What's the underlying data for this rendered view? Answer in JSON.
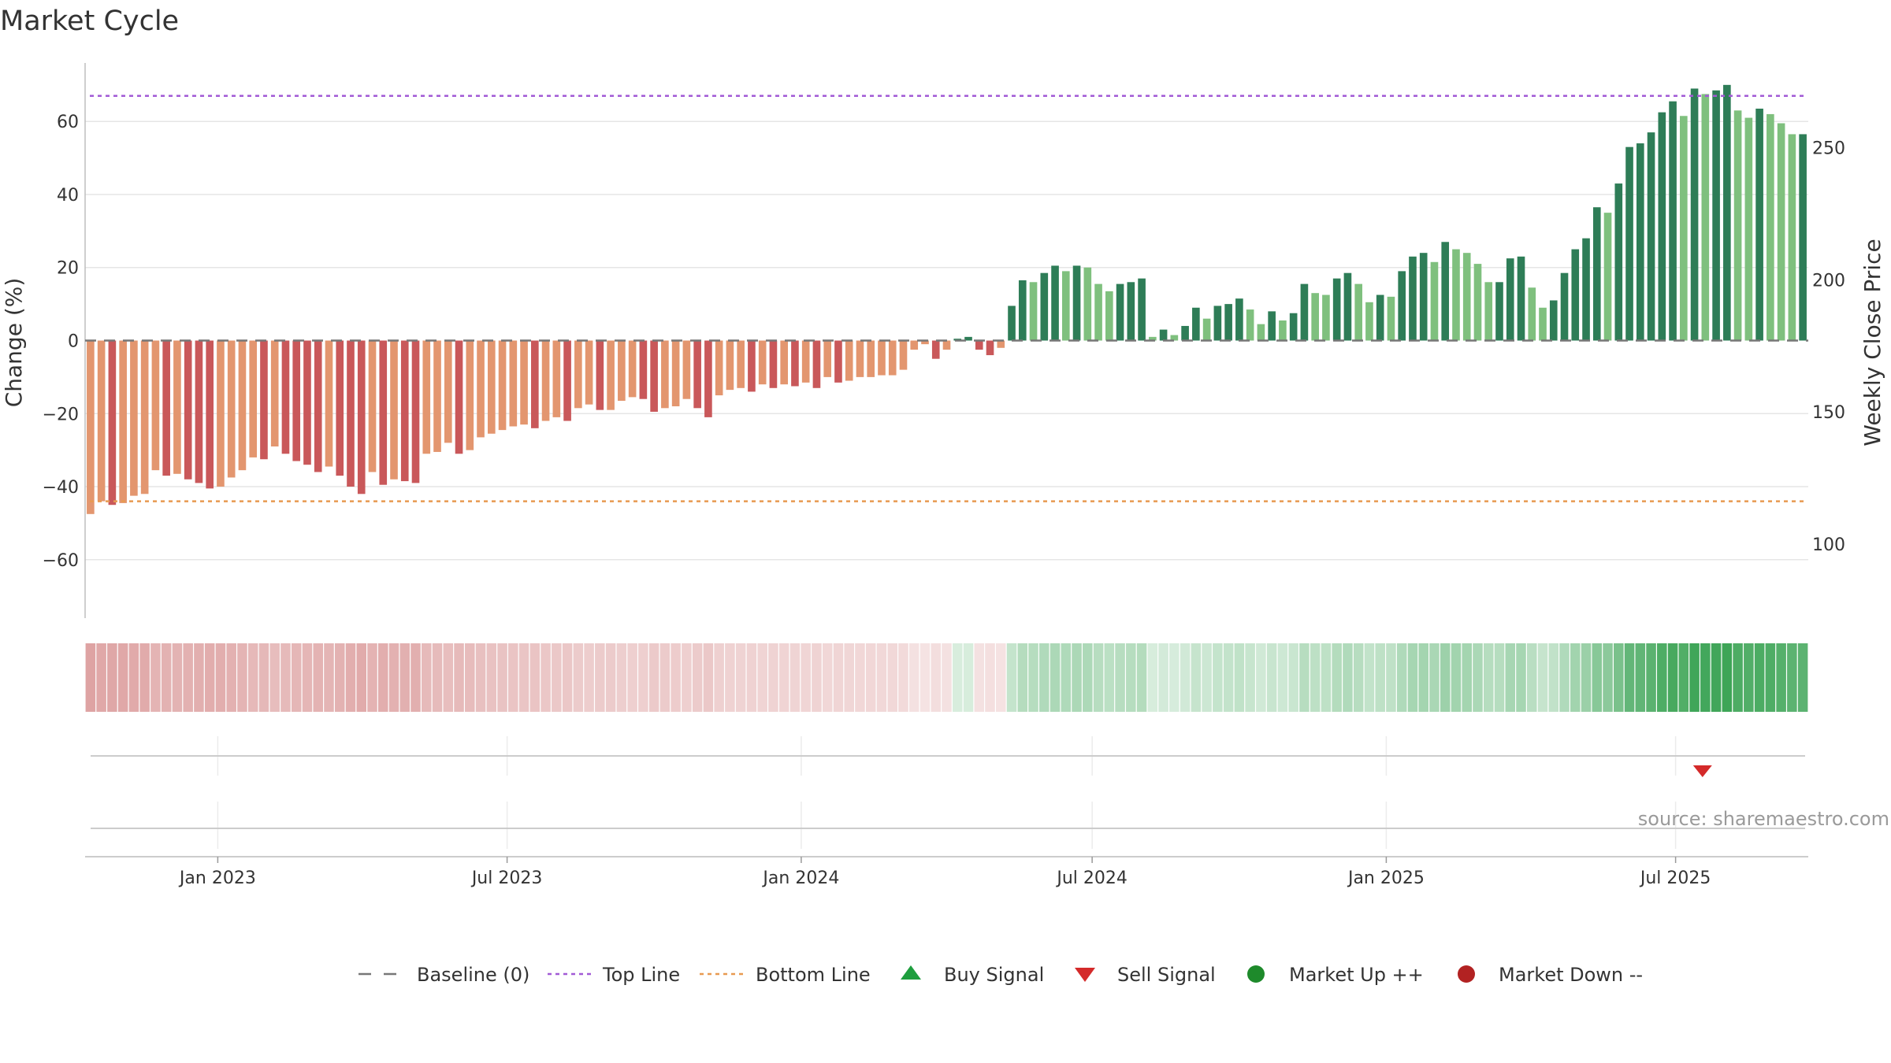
{
  "chart_data": {
    "type": "bar",
    "title": "Market Cycle",
    "ylabel_left": "Change (%)",
    "ylabel_right": "Weekly Close Price",
    "source": "source: sharemaestro.com",
    "x_start": "2022-10-10",
    "x_end": "2025-09-22",
    "x_ticks": [
      {
        "date": "2023-01-01",
        "label": "Jan 2023"
      },
      {
        "date": "2023-07-01",
        "label": "Jul 2023"
      },
      {
        "date": "2024-01-01",
        "label": "Jan 2024"
      },
      {
        "date": "2024-07-01",
        "label": "Jul 2024"
      },
      {
        "date": "2025-01-01",
        "label": "Jan 2025"
      },
      {
        "date": "2025-07-01",
        "label": "Jul 2025"
      }
    ],
    "y_left": {
      "min": -76,
      "max": 76,
      "ticks": [
        -60,
        -40,
        -20,
        0,
        20,
        40,
        60
      ],
      "tick_labels": [
        "−60",
        "−40",
        "−20",
        "0",
        "20",
        "40",
        "60"
      ]
    },
    "y_right": {
      "min": 72,
      "max": 282,
      "ticks": [
        100,
        150,
        200,
        250
      ],
      "tick_labels": [
        "100",
        "150",
        "200",
        "250"
      ]
    },
    "top_line": 67,
    "bottom_line": -44,
    "baseline": 0,
    "weekly_change": [
      -47.5,
      -44,
      -45,
      -44.5,
      -42.5,
      -42,
      -35.5,
      -37,
      -36.5,
      -38,
      -39,
      -40.5,
      -40,
      -37.5,
      -35.5,
      -32,
      -32.5,
      -29,
      -31,
      -33,
      -34,
      -36,
      -34.5,
      -37,
      -40,
      -42,
      -36,
      -39.5,
      -38,
      -38.5,
      -39,
      -31,
      -30.5,
      -28,
      -31,
      -30,
      -26.5,
      -25.5,
      -24.5,
      -23.5,
      -23,
      -24,
      -22,
      -21,
      -22,
      -18.5,
      -17.5,
      -19,
      -19,
      -16.5,
      -15.5,
      -16,
      -19.5,
      -18.5,
      -18,
      -16,
      -18.5,
      -21,
      -15,
      -13.5,
      -13,
      -14,
      -12,
      -13,
      -12,
      -12.5,
      -11.5,
      -13,
      -10,
      -11.5,
      -11,
      -10,
      -10,
      -9.5,
      -9.5,
      -8,
      -2.5,
      -1,
      -5,
      -2.5,
      0.5,
      1,
      -2.5,
      -4,
      -2,
      9.5,
      16.5,
      16,
      18.5,
      20.5,
      19,
      20.5,
      20,
      15.5,
      13.5,
      15.5,
      16,
      17,
      1,
      3,
      1.5,
      4,
      9,
      6,
      9.5,
      10,
      11.5,
      8.5,
      4.5,
      8,
      5.5,
      7.5,
      15.5,
      13,
      12.5,
      17,
      18.5,
      15.5,
      10.5,
      12.5,
      12,
      19,
      23,
      24,
      21.5,
      27,
      25,
      24,
      21,
      16,
      16,
      22.5,
      23,
      14.5,
      9,
      11,
      18.5,
      25,
      28,
      36.5,
      35,
      43,
      53,
      54,
      57,
      62.5,
      65.5,
      61.5,
      69,
      67.5,
      68.5,
      70,
      63,
      61,
      63.5,
      62,
      59.5,
      56.5,
      56.5
    ],
    "heatmap_strip": "weekly intensity ribbon: red during decline, green during advance",
    "signals": [
      {
        "type": "Sell Signal",
        "date": "2025-07-08"
      }
    ],
    "colors": {
      "down_dark": "#c9585a",
      "down_light": "#e3966f",
      "up_dark": "#2e7d57",
      "up_light": "#7fc07e",
      "top_line": "#a25ad6",
      "bottom_line": "#e89a50",
      "baseline": "#777777",
      "buy": "#1e9e3e",
      "sell": "#d42a2a",
      "market_up": "#1e8a2b",
      "market_down": "#b22222"
    },
    "legend": [
      {
        "key": "baseline",
        "label": "Baseline (0)"
      },
      {
        "key": "top_line",
        "label": "Top Line"
      },
      {
        "key": "bottom_line",
        "label": "Bottom Line"
      },
      {
        "key": "buy",
        "label": "Buy Signal"
      },
      {
        "key": "sell",
        "label": "Sell Signal"
      },
      {
        "key": "market_up",
        "label": "Market Up ++"
      },
      {
        "key": "market_down",
        "label": "Market Down --"
      }
    ]
  }
}
